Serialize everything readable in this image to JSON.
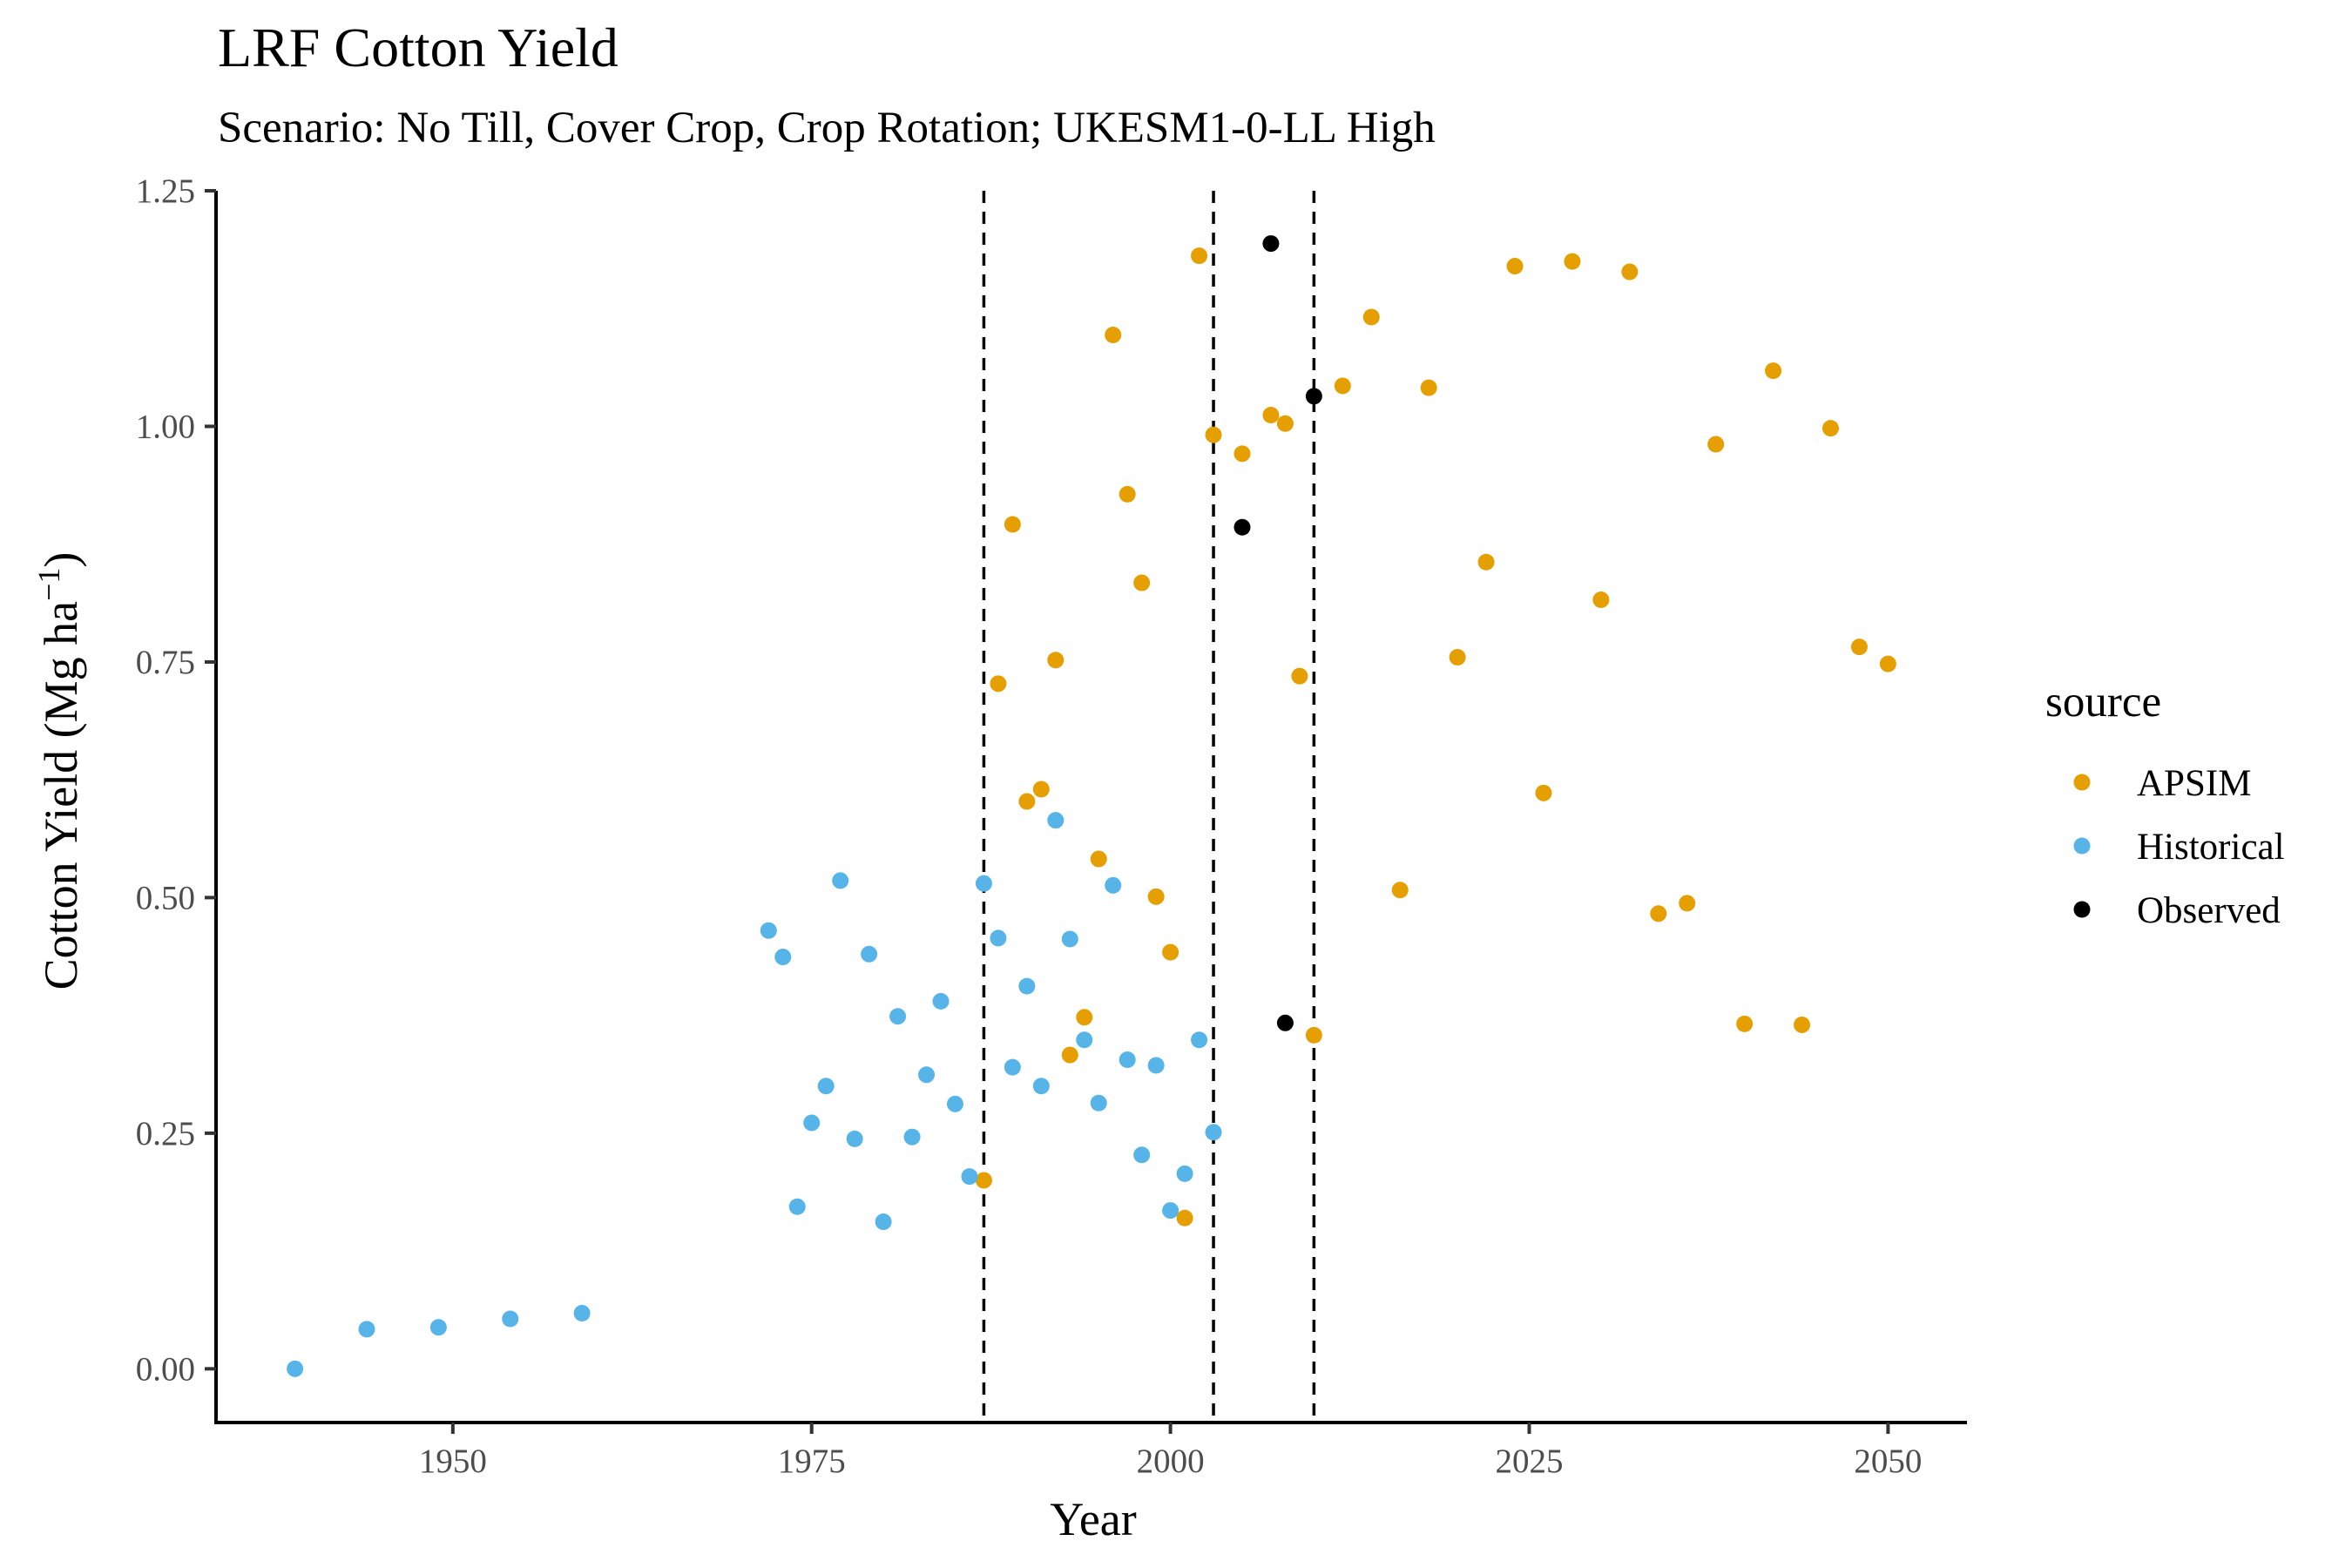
{
  "chart_data": {
    "type": "scatter",
    "title": "LRF Cotton Yield",
    "subtitle": "Scenario: No Till, Cover Crop, Crop Rotation; UKESM1-0-LL High",
    "xlabel": "Year",
    "ylabel": "Cotton Yield (Mg ha",
    "ylabel_superscript": "−1",
    "ylabel_close": ")",
    "xlim": [
      1933.5,
      2055.5
    ],
    "ylim": [
      -0.057,
      1.25
    ],
    "x_ticks": [
      1950,
      1975,
      2000,
      2025,
      2050
    ],
    "x_tick_labels": [
      "1950",
      "1975",
      "2000",
      "2025",
      "2050"
    ],
    "y_ticks": [
      0,
      0.25,
      0.5,
      0.75,
      1.0,
      1.25
    ],
    "y_tick_labels": [
      "0.00",
      "0.25",
      "0.50",
      "0.75",
      "1.00",
      "1.25"
    ],
    "vlines": [
      1987,
      2003,
      2010
    ],
    "grid": false,
    "legend_title": "source",
    "legend_position": "right",
    "series": [
      {
        "name": "APSIM",
        "color": "#E69F00",
        "points": [
          [
            1987,
            0.2
          ],
          [
            1988,
            0.727
          ],
          [
            1989,
            0.896
          ],
          [
            1990,
            0.602
          ],
          [
            1991,
            0.615
          ],
          [
            1992,
            0.752
          ],
          [
            1993,
            0.333
          ],
          [
            1994,
            0.373
          ],
          [
            1995,
            0.541
          ],
          [
            1996,
            1.097
          ],
          [
            1997,
            0.928
          ],
          [
            1998,
            0.834
          ],
          [
            1999,
            0.501
          ],
          [
            2000,
            0.442
          ],
          [
            2001,
            0.16
          ],
          [
            2002,
            1.181
          ],
          [
            2003,
            0.991
          ],
          [
            2005,
            0.971
          ],
          [
            2007,
            1.012
          ],
          [
            2008,
            1.003
          ],
          [
            2009,
            0.735
          ],
          [
            2010,
            0.354
          ],
          [
            2012,
            1.043
          ],
          [
            2014,
            1.116
          ],
          [
            2016,
            0.508
          ],
          [
            2018,
            1.041
          ],
          [
            2020,
            0.755
          ],
          [
            2022,
            0.856
          ],
          [
            2024,
            1.17
          ],
          [
            2026,
            0.611
          ],
          [
            2028,
            1.175
          ],
          [
            2030,
            0.816
          ],
          [
            2032,
            1.164
          ],
          [
            2034,
            0.483
          ],
          [
            2036,
            0.494
          ],
          [
            2038,
            0.981
          ],
          [
            2040,
            0.366
          ],
          [
            2042,
            1.059
          ],
          [
            2044,
            0.365
          ],
          [
            2046,
            0.998
          ],
          [
            2048,
            0.766
          ],
          [
            2050,
            0.748
          ]
        ]
      },
      {
        "name": "Historical",
        "color": "#56B4E9",
        "points": [
          [
            1939,
            0.0
          ],
          [
            1944,
            0.042
          ],
          [
            1949,
            0.044
          ],
          [
            1954,
            0.053
          ],
          [
            1959,
            0.059
          ],
          [
            1972,
            0.465
          ],
          [
            1973,
            0.437
          ],
          [
            1974,
            0.172
          ],
          [
            1975,
            0.261
          ],
          [
            1976,
            0.3
          ],
          [
            1977,
            0.518
          ],
          [
            1978,
            0.244
          ],
          [
            1979,
            0.44
          ],
          [
            1980,
            0.156
          ],
          [
            1981,
            0.374
          ],
          [
            1982,
            0.246
          ],
          [
            1983,
            0.312
          ],
          [
            1984,
            0.39
          ],
          [
            1985,
            0.281
          ],
          [
            1986,
            0.204
          ],
          [
            1987,
            0.515
          ],
          [
            1988,
            0.457
          ],
          [
            1989,
            0.32
          ],
          [
            1990,
            0.406
          ],
          [
            1991,
            0.3
          ],
          [
            1992,
            0.582
          ],
          [
            1993,
            0.456
          ],
          [
            1994,
            0.349
          ],
          [
            1995,
            0.282
          ],
          [
            1996,
            0.513
          ],
          [
            1997,
            0.328
          ],
          [
            1998,
            0.227
          ],
          [
            1999,
            0.322
          ],
          [
            2000,
            0.168
          ],
          [
            2001,
            0.207
          ],
          [
            2002,
            0.349
          ],
          [
            2003,
            0.251
          ]
        ]
      },
      {
        "name": "Observed",
        "color": "#000000",
        "points": [
          [
            2005,
            0.893
          ],
          [
            2007,
            1.194
          ],
          [
            2008,
            0.367
          ],
          [
            2010,
            1.032
          ]
        ]
      }
    ]
  }
}
